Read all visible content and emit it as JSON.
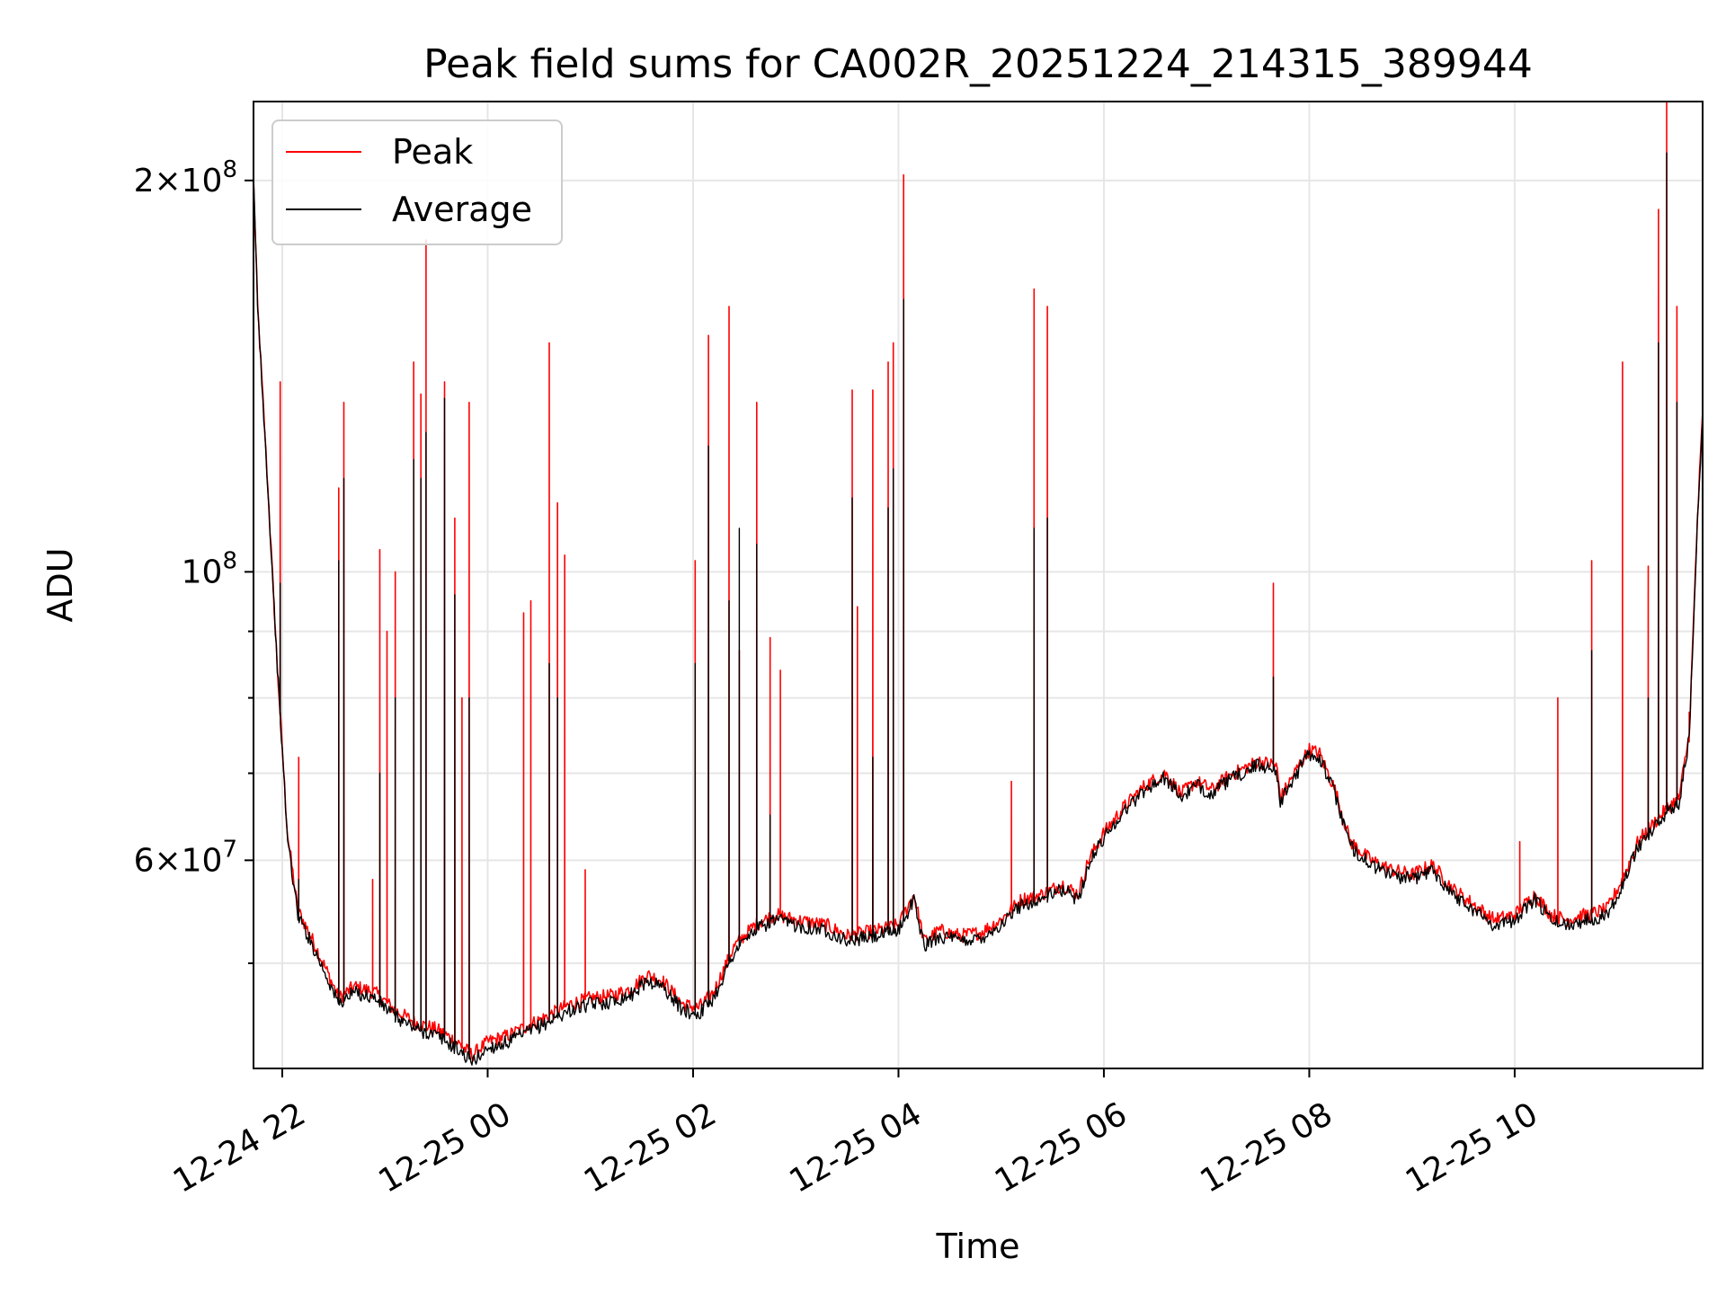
{
  "chart_data": {
    "type": "line",
    "title": "Peak field sums for CA002R_20251224_214315_389944",
    "xlabel": "Time",
    "ylabel": "ADU",
    "yscale": "log",
    "ylim": [
      41500000,
      230000000
    ],
    "xlim_hours": [
      21.72,
      35.83
    ],
    "grid": true,
    "legend_position": "upper-left",
    "x_ticks": [
      {
        "hour": 22,
        "label": "12-24 22"
      },
      {
        "hour": 24,
        "label": "12-25 00"
      },
      {
        "hour": 26,
        "label": "12-25 02"
      },
      {
        "hour": 28,
        "label": "12-25 04"
      },
      {
        "hour": 30,
        "label": "12-25 06"
      },
      {
        "hour": 32,
        "label": "12-25 08"
      },
      {
        "hour": 34,
        "label": "12-25 10"
      }
    ],
    "y_major_ticks": [
      {
        "value": 60000000,
        "base": "6",
        "exp": "7"
      },
      {
        "value": 100000000,
        "base": "",
        "exp": "8"
      },
      {
        "value": 200000000,
        "base": "2",
        "exp": "8"
      }
    ],
    "y_minor_ticks": [
      50000000,
      70000000,
      80000000,
      90000000
    ],
    "times_symbol": "×",
    "power_base": "10",
    "series": [
      {
        "name": "Peak",
        "color": "#ff0000",
        "baseline": [
          [
            21.72,
            200000000
          ],
          [
            21.76,
            160000000
          ],
          [
            21.85,
            120000000
          ],
          [
            21.95,
            85000000
          ],
          [
            22.05,
            63000000
          ],
          [
            22.15,
            55000000
          ],
          [
            22.3,
            52000000
          ],
          [
            22.45,
            49000000
          ],
          [
            22.55,
            47000000
          ],
          [
            22.7,
            48000000
          ],
          [
            22.9,
            47500000
          ],
          [
            23.1,
            46000000
          ],
          [
            23.3,
            45000000
          ],
          [
            23.5,
            44500000
          ],
          [
            23.7,
            43500000
          ],
          [
            23.85,
            42500000
          ],
          [
            24.0,
            43500000
          ],
          [
            24.2,
            44000000
          ],
          [
            24.4,
            44800000
          ],
          [
            24.6,
            45600000
          ],
          [
            24.8,
            46500000
          ],
          [
            25.0,
            47000000
          ],
          [
            25.2,
            47200000
          ],
          [
            25.4,
            47800000
          ],
          [
            25.55,
            49000000
          ],
          [
            25.7,
            48500000
          ],
          [
            25.9,
            46500000
          ],
          [
            26.05,
            46200000
          ],
          [
            26.2,
            47500000
          ],
          [
            26.4,
            51500000
          ],
          [
            26.6,
            53500000
          ],
          [
            26.8,
            54500000
          ],
          [
            27.0,
            54000000
          ],
          [
            27.3,
            53500000
          ],
          [
            27.5,
            52500000
          ],
          [
            27.8,
            53000000
          ],
          [
            28.0,
            53500000
          ],
          [
            28.15,
            56500000
          ],
          [
            28.25,
            52000000
          ],
          [
            28.4,
            53000000
          ],
          [
            28.6,
            52500000
          ],
          [
            28.8,
            52800000
          ],
          [
            29.0,
            54000000
          ],
          [
            29.2,
            56000000
          ],
          [
            29.4,
            56500000
          ],
          [
            29.6,
            57500000
          ],
          [
            29.75,
            56500000
          ],
          [
            29.85,
            60000000
          ],
          [
            30.0,
            63000000
          ],
          [
            30.2,
            66000000
          ],
          [
            30.4,
            68500000
          ],
          [
            30.6,
            70000000
          ],
          [
            30.75,
            67500000
          ],
          [
            30.9,
            69000000
          ],
          [
            31.05,
            68000000
          ],
          [
            31.2,
            69500000
          ],
          [
            31.35,
            70500000
          ],
          [
            31.5,
            71500000
          ],
          [
            31.68,
            71000000
          ],
          [
            31.72,
            67000000
          ],
          [
            31.9,
            71000000
          ],
          [
            32.0,
            73000000
          ],
          [
            32.1,
            72500000
          ],
          [
            32.25,
            68000000
          ],
          [
            32.4,
            62000000
          ],
          [
            32.6,
            60000000
          ],
          [
            32.8,
            59000000
          ],
          [
            33.0,
            58500000
          ],
          [
            33.2,
            59500000
          ],
          [
            33.4,
            57000000
          ],
          [
            33.6,
            55500000
          ],
          [
            33.8,
            54000000
          ],
          [
            34.0,
            54500000
          ],
          [
            34.2,
            56500000
          ],
          [
            34.35,
            54500000
          ],
          [
            34.5,
            54000000
          ],
          [
            34.7,
            54500000
          ],
          [
            34.9,
            55000000
          ],
          [
            35.05,
            58000000
          ],
          [
            35.2,
            62000000
          ],
          [
            35.35,
            64000000
          ],
          [
            35.5,
            66000000
          ],
          [
            35.6,
            67000000
          ],
          [
            35.7,
            75000000
          ],
          [
            35.78,
            110000000
          ],
          [
            35.83,
            132000000
          ]
        ],
        "spikes": [
          [
            21.98,
            140000000
          ],
          [
            22.16,
            72000000
          ],
          [
            22.55,
            116000000
          ],
          [
            22.6,
            135000000
          ],
          [
            22.88,
            58000000
          ],
          [
            22.95,
            104000000
          ],
          [
            23.02,
            90000000
          ],
          [
            23.1,
            100000000
          ],
          [
            23.28,
            145000000
          ],
          [
            23.35,
            137000000
          ],
          [
            23.4,
            180000000
          ],
          [
            23.58,
            140000000
          ],
          [
            23.68,
            110000000
          ],
          [
            23.75,
            80000000
          ],
          [
            23.82,
            135000000
          ],
          [
            24.35,
            93000000
          ],
          [
            24.42,
            95000000
          ],
          [
            24.6,
            150000000
          ],
          [
            24.68,
            113000000
          ],
          [
            24.75,
            103000000
          ],
          [
            24.95,
            59000000
          ],
          [
            26.02,
            102000000
          ],
          [
            26.15,
            152000000
          ],
          [
            26.35,
            160000000
          ],
          [
            26.45,
            87000000
          ],
          [
            26.62,
            135000000
          ],
          [
            26.75,
            89000000
          ],
          [
            26.85,
            84000000
          ],
          [
            27.55,
            138000000
          ],
          [
            27.6,
            94000000
          ],
          [
            27.75,
            138000000
          ],
          [
            27.9,
            145000000
          ],
          [
            27.95,
            150000000
          ],
          [
            28.05,
            202000000
          ],
          [
            29.1,
            69000000
          ],
          [
            29.32,
            165000000
          ],
          [
            29.45,
            160000000
          ],
          [
            31.65,
            98000000
          ],
          [
            34.05,
            62000000
          ],
          [
            34.42,
            80000000
          ],
          [
            34.75,
            102000000
          ],
          [
            35.05,
            145000000
          ],
          [
            35.3,
            101000000
          ],
          [
            35.4,
            190000000
          ],
          [
            35.48,
            230000000
          ],
          [
            35.58,
            160000000
          ],
          [
            35.7,
            78000000
          ]
        ]
      },
      {
        "name": "Average",
        "color": "#000000",
        "baseline": [
          [
            21.72,
            200000000
          ],
          [
            21.76,
            160000000
          ],
          [
            21.85,
            120000000
          ],
          [
            21.95,
            85000000
          ],
          [
            22.05,
            62500000
          ],
          [
            22.15,
            54500000
          ],
          [
            22.3,
            51500000
          ],
          [
            22.45,
            48500000
          ],
          [
            22.55,
            46500000
          ],
          [
            22.7,
            47500000
          ],
          [
            22.9,
            47000000
          ],
          [
            23.1,
            45500000
          ],
          [
            23.3,
            44500000
          ],
          [
            23.5,
            44000000
          ],
          [
            23.7,
            43000000
          ],
          [
            23.85,
            42000000
          ],
          [
            24.0,
            43000000
          ],
          [
            24.2,
            43500000
          ],
          [
            24.4,
            44300000
          ],
          [
            24.6,
            45100000
          ],
          [
            24.8,
            46000000
          ],
          [
            25.0,
            46500000
          ],
          [
            25.2,
            46700000
          ],
          [
            25.4,
            47300000
          ],
          [
            25.55,
            48500000
          ],
          [
            25.7,
            48000000
          ],
          [
            25.9,
            46000000
          ],
          [
            26.05,
            45700000
          ],
          [
            26.2,
            47000000
          ],
          [
            26.4,
            51000000
          ],
          [
            26.6,
            53000000
          ],
          [
            26.8,
            54000000
          ],
          [
            27.0,
            53500000
          ],
          [
            27.3,
            53000000
          ],
          [
            27.5,
            52000000
          ],
          [
            27.8,
            52500000
          ],
          [
            28.0,
            53000000
          ],
          [
            28.15,
            56000000
          ],
          [
            28.25,
            51500000
          ],
          [
            28.4,
            52500000
          ],
          [
            28.6,
            52000000
          ],
          [
            28.8,
            52300000
          ],
          [
            29.0,
            53500000
          ],
          [
            29.2,
            55500000
          ],
          [
            29.4,
            56000000
          ],
          [
            29.6,
            57000000
          ],
          [
            29.75,
            56000000
          ],
          [
            29.85,
            59500000
          ],
          [
            30.0,
            62500000
          ],
          [
            30.2,
            65500000
          ],
          [
            30.4,
            68000000
          ],
          [
            30.6,
            69500000
          ],
          [
            30.75,
            67000000
          ],
          [
            30.9,
            68500000
          ],
          [
            31.05,
            67500000
          ],
          [
            31.2,
            69000000
          ],
          [
            31.35,
            70000000
          ],
          [
            31.5,
            71000000
          ],
          [
            31.68,
            70500000
          ],
          [
            31.72,
            66500000
          ],
          [
            31.9,
            70500000
          ],
          [
            32.0,
            72500000
          ],
          [
            32.1,
            72000000
          ],
          [
            32.25,
            67500000
          ],
          [
            32.4,
            61500000
          ],
          [
            32.6,
            59500000
          ],
          [
            32.8,
            58500000
          ],
          [
            33.0,
            58000000
          ],
          [
            33.2,
            59000000
          ],
          [
            33.4,
            56500000
          ],
          [
            33.6,
            55000000
          ],
          [
            33.8,
            53500000
          ],
          [
            34.0,
            54000000
          ],
          [
            34.2,
            56000000
          ],
          [
            34.35,
            54000000
          ],
          [
            34.5,
            53500000
          ],
          [
            34.7,
            54000000
          ],
          [
            34.9,
            54500000
          ],
          [
            35.05,
            57500000
          ],
          [
            35.2,
            61500000
          ],
          [
            35.35,
            63500000
          ],
          [
            35.5,
            65500000
          ],
          [
            35.6,
            66500000
          ],
          [
            35.7,
            74500000
          ],
          [
            35.78,
            109000000
          ],
          [
            35.83,
            131000000
          ]
        ],
        "spikes": [
          [
            21.98,
            98000000
          ],
          [
            22.16,
            58000000
          ],
          [
            22.55,
            102000000
          ],
          [
            22.6,
            118000000
          ],
          [
            22.95,
            70000000
          ],
          [
            23.1,
            80000000
          ],
          [
            23.28,
            122000000
          ],
          [
            23.35,
            118000000
          ],
          [
            23.4,
            128000000
          ],
          [
            23.58,
            136000000
          ],
          [
            23.68,
            96000000
          ],
          [
            23.82,
            80000000
          ],
          [
            24.6,
            85000000
          ],
          [
            24.68,
            80000000
          ],
          [
            26.02,
            85000000
          ],
          [
            26.15,
            125000000
          ],
          [
            26.35,
            95000000
          ],
          [
            26.45,
            108000000
          ],
          [
            26.62,
            105000000
          ],
          [
            26.75,
            65000000
          ],
          [
            27.55,
            114000000
          ],
          [
            27.75,
            72000000
          ],
          [
            27.9,
            112000000
          ],
          [
            27.95,
            120000000
          ],
          [
            28.05,
            162000000
          ],
          [
            29.32,
            108000000
          ],
          [
            29.45,
            110000000
          ],
          [
            31.65,
            83000000
          ],
          [
            34.75,
            87000000
          ],
          [
            35.3,
            80000000
          ],
          [
            35.4,
            150000000
          ],
          [
            35.48,
            210000000
          ],
          [
            35.58,
            135000000
          ]
        ]
      }
    ]
  }
}
